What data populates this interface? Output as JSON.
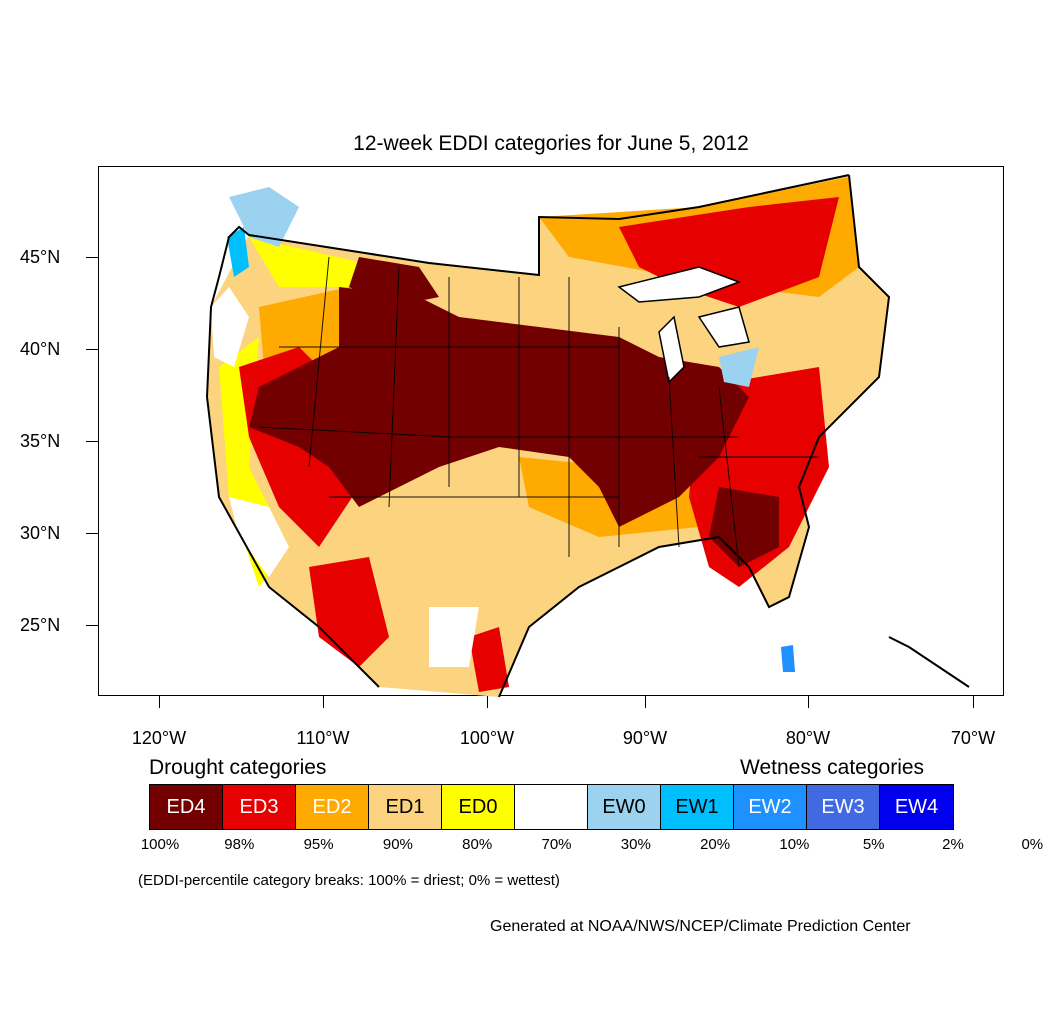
{
  "title": "12-week EDDI categories for June 5, 2012",
  "lat_labels": [
    "45°N",
    "40°N",
    "35°N",
    "30°N",
    "25°N"
  ],
  "lon_labels": [
    "120°W",
    "110°W",
    "100°W",
    "90°W",
    "80°W",
    "70°W"
  ],
  "legend": {
    "drought_header": "Drought categories",
    "wetness_header": "Wetness categories",
    "categories": [
      {
        "label": "ED4",
        "color": "#730000"
      },
      {
        "label": "ED3",
        "color": "#e60000"
      },
      {
        "label": "ED2",
        "color": "#ffaa00"
      },
      {
        "label": "ED1",
        "color": "#fcd37f"
      },
      {
        "label": "ED0",
        "color": "#ffff00"
      },
      {
        "label": "",
        "color": "#ffffff"
      },
      {
        "label": "EW0",
        "color": "#9bd2f0"
      },
      {
        "label": "EW1",
        "color": "#00bfff"
      },
      {
        "label": "EW2",
        "color": "#1e90ff"
      },
      {
        "label": "EW3",
        "color": "#4169e1"
      },
      {
        "label": "EW4",
        "color": "#0000ee"
      }
    ],
    "breaks": [
      "100%",
      "98%",
      "95%",
      "90%",
      "80%",
      "70%",
      "30%",
      "20%",
      "10%",
      "5%",
      "2%",
      "0%"
    ]
  },
  "note": "(EDDI-percentile category breaks: 100% = driest; 0% = wettest)",
  "credit": "Generated at NOAA/NWS/NCEP/Climate Prediction Center"
}
